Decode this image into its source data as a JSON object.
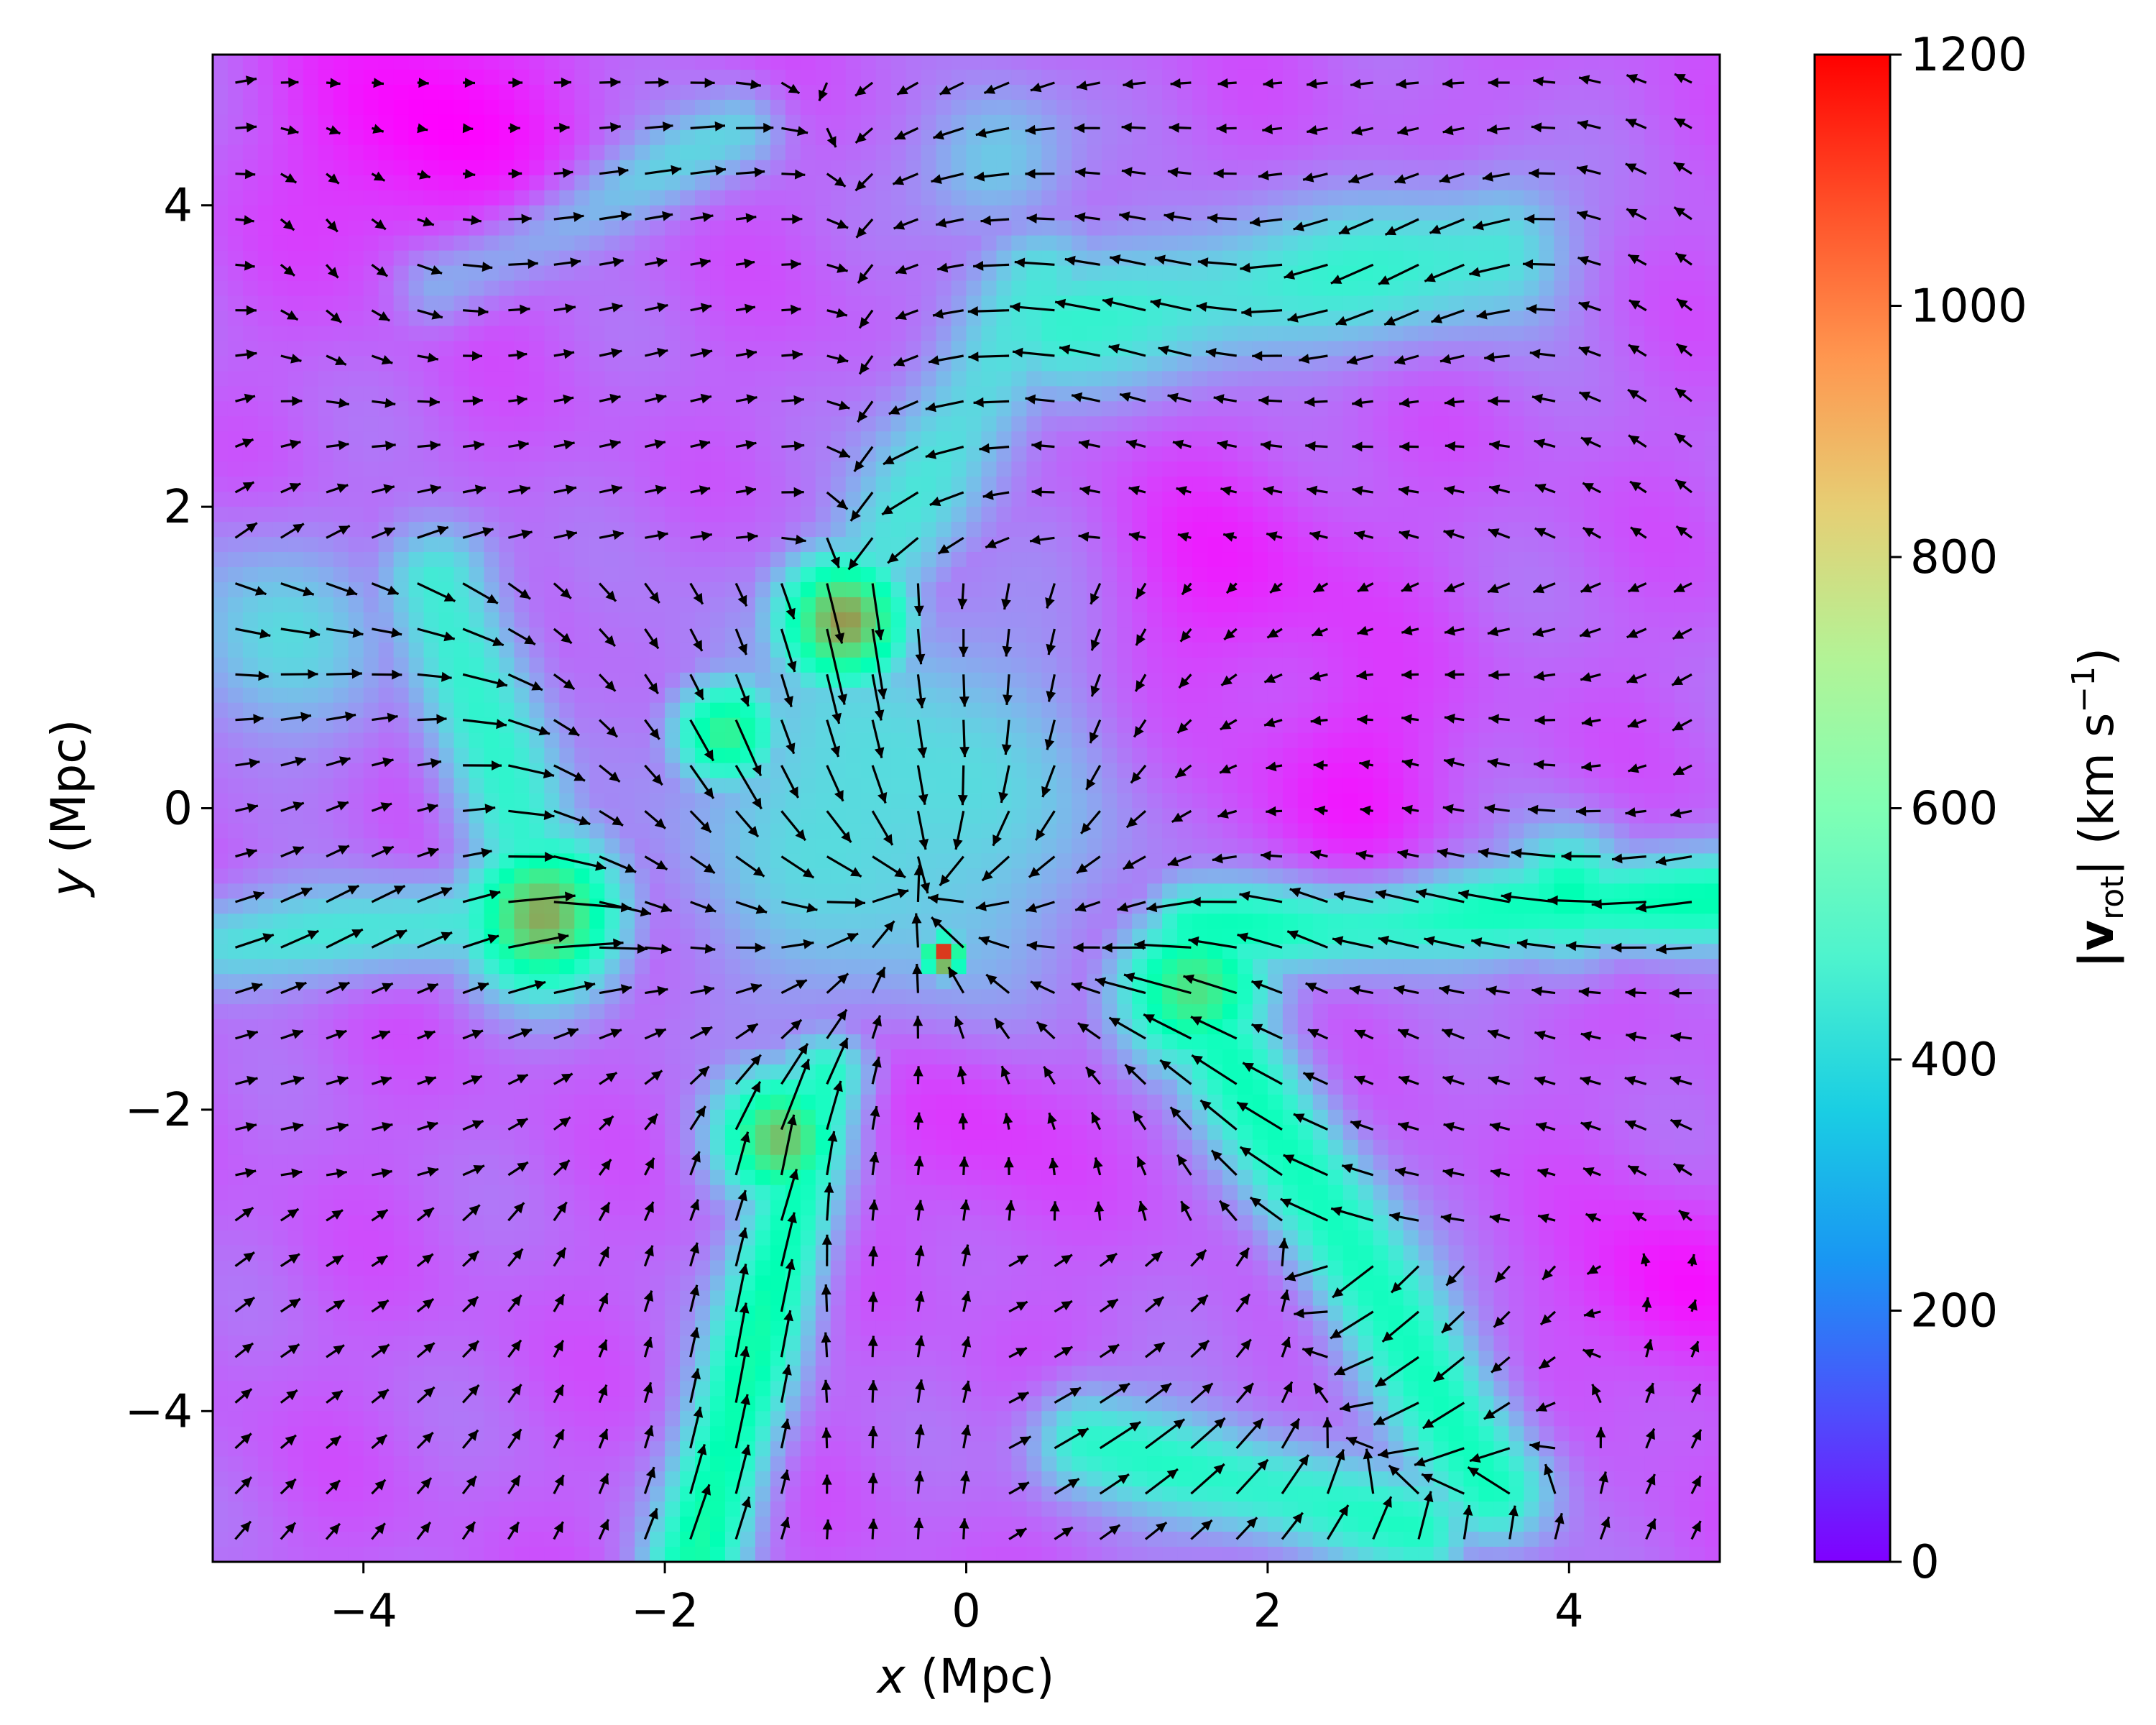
{
  "chart_data": {
    "type": "heatmap",
    "subtype": "velocity-magnitude map with quiver overlay",
    "title": "",
    "xlabel": {
      "var": "x",
      "unit": " (Mpc)"
    },
    "ylabel": {
      "var": "y",
      "unit": " (Mpc)"
    },
    "xlim": [
      -5,
      5
    ],
    "ylim": [
      -5,
      5
    ],
    "xticks": [
      -4,
      -2,
      0,
      2,
      4
    ],
    "yticks": [
      -4,
      -2,
      0,
      2,
      4
    ],
    "xtick_labels": [
      "−4",
      "−2",
      "0",
      "2",
      "4"
    ],
    "ytick_labels": [
      "−4",
      "−2",
      "0",
      "2",
      "4"
    ],
    "colormap": "rainbow",
    "colorbar": {
      "label_main": "|v",
      "label_sub": "rot",
      "label_unit": "| (km s",
      "label_exp": "−1",
      "label_close": ")",
      "range": [
        0,
        1200
      ],
      "ticks": [
        0,
        200,
        400,
        600,
        800,
        1000,
        1200
      ],
      "tick_labels": [
        "0",
        "200",
        "400",
        "600",
        "800",
        "1000",
        "1200"
      ]
    },
    "field": {
      "background": 150,
      "features": [
        {
          "kind": "blob",
          "x": -0.15,
          "y": -0.98,
          "value": 1200,
          "sigma": 0.09
        },
        {
          "kind": "blob",
          "x": -2.8,
          "y": -0.7,
          "value": 920,
          "sigma": 0.35
        },
        {
          "kind": "blob",
          "x": -1.2,
          "y": -2.2,
          "value": 900,
          "sigma": 0.3
        },
        {
          "kind": "blob",
          "x": -0.8,
          "y": 1.25,
          "value": 950,
          "sigma": 0.3
        },
        {
          "kind": "blob",
          "x": 1.5,
          "y": -1.2,
          "value": 800,
          "sigma": 0.35
        },
        {
          "kind": "blob",
          "x": 4.0,
          "y": -0.6,
          "value": 620,
          "sigma": 0.3
        },
        {
          "kind": "blob",
          "x": -1.6,
          "y": 0.5,
          "value": 750,
          "sigma": 0.25
        },
        {
          "kind": "filament",
          "from": [
            -0.9,
            -1.8
          ],
          "to": [
            -1.8,
            -5.0
          ],
          "value": 620,
          "width": 0.45
        },
        {
          "kind": "filament",
          "from": [
            1.6,
            -1.4
          ],
          "to": [
            3.5,
            -4.5
          ],
          "value": 560,
          "width": 0.55
        },
        {
          "kind": "filament",
          "from": [
            1.5,
            -0.8
          ],
          "to": [
            5.0,
            -0.6
          ],
          "value": 580,
          "width": 0.45
        },
        {
          "kind": "filament",
          "from": [
            -2.8,
            -0.7
          ],
          "to": [
            -4.9,
            -0.9
          ],
          "value": 420,
          "width": 0.45
        },
        {
          "kind": "filament",
          "from": [
            -2.8,
            -0.7
          ],
          "to": [
            -3.5,
            1.5
          ],
          "value": 480,
          "width": 0.55
        },
        {
          "kind": "filament",
          "from": [
            -0.8,
            1.2
          ],
          "to": [
            0.5,
            3.5
          ],
          "value": 420,
          "width": 0.6
        },
        {
          "kind": "filament",
          "from": [
            0.6,
            3.2
          ],
          "to": [
            3.5,
            3.7
          ],
          "value": 450,
          "width": 0.7
        },
        {
          "kind": "filament",
          "from": [
            0.8,
            -4.2
          ],
          "to": [
            3.0,
            -4.8
          ],
          "value": 520,
          "width": 0.5
        },
        {
          "kind": "filament",
          "from": [
            -3.5,
            3.5
          ],
          "to": [
            -1.5,
            4.5
          ],
          "value": 360,
          "width": 0.4
        },
        {
          "kind": "blob",
          "x": -0.5,
          "y": 0.0,
          "value": 420,
          "sigma": 1.0
        },
        {
          "kind": "blob",
          "x": 0.2,
          "y": 4.3,
          "value": 380,
          "sigma": 0.35
        },
        {
          "kind": "blob",
          "x": -4.6,
          "y": 1.1,
          "value": 380,
          "sigma": 0.5
        },
        {
          "kind": "hole",
          "x": -3.6,
          "y": 4.5,
          "value": 0,
          "sigma": 0.6
        },
        {
          "kind": "hole",
          "x": 4.7,
          "y": -3.2,
          "value": 20,
          "sigma": 0.45
        },
        {
          "kind": "hole",
          "x": 1.8,
          "y": 1.5,
          "value": 60,
          "sigma": 0.6
        },
        {
          "kind": "hole",
          "x": 2.5,
          "y": 0.2,
          "value": 50,
          "sigma": 0.5
        },
        {
          "kind": "hole",
          "x": 0.0,
          "y": -2.2,
          "value": 80,
          "sigma": 0.5
        }
      ]
    },
    "quiver": {
      "grid_x_start": -4.85,
      "grid_y_start": -4.85,
      "grid_step": 0.302,
      "max_length": 0.55,
      "max_speed": 1200,
      "color": "#000000"
    }
  }
}
